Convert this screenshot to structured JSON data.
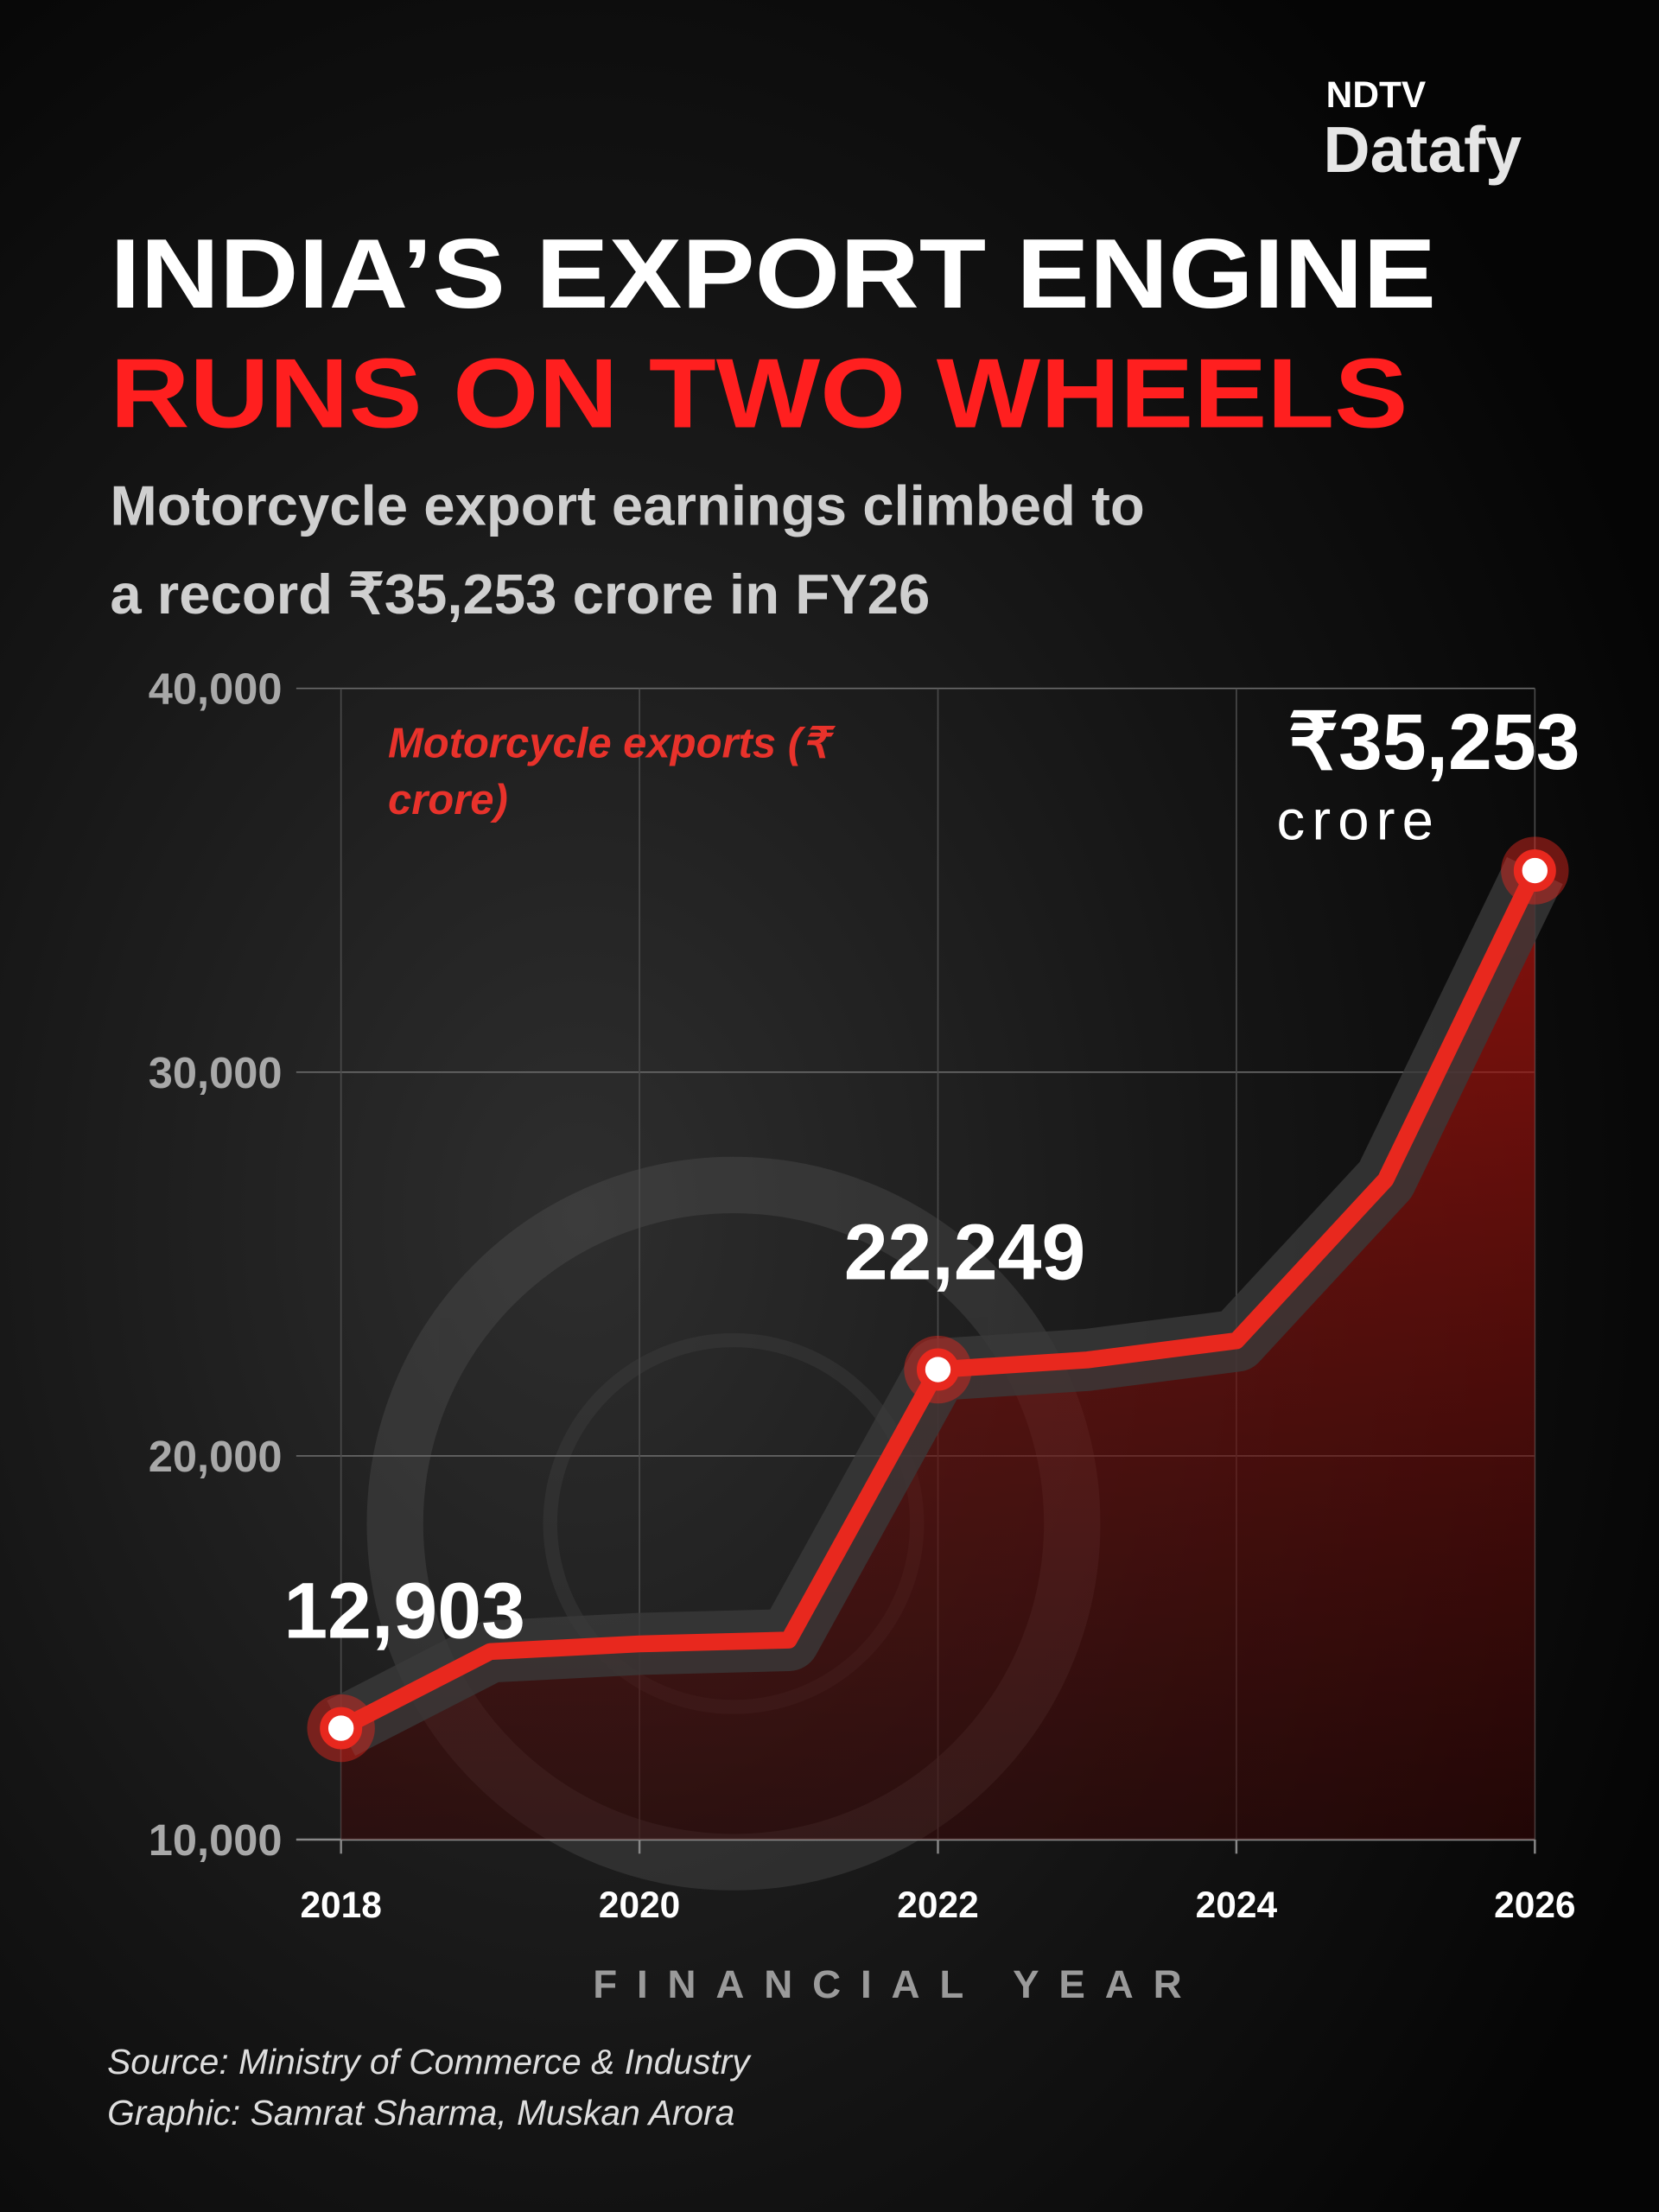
{
  "brand": {
    "top": "NDTV",
    "bottom": "Datafy"
  },
  "chart_data": {
    "type": "line",
    "title": [
      "INDIA’S EXPORT ENGINE",
      "RUNS ON TWO WHEELS"
    ],
    "subtitle": [
      "Motorcycle export earnings climbed to",
      "a record ₹35,253 crore in FY26"
    ],
    "x": [
      2018,
      2019,
      2020,
      2021,
      2022,
      2023,
      2024,
      2025,
      2026
    ],
    "series": [
      {
        "name": "Motorcycle exports (₹ crore)",
        "color": "#e8281e",
        "values": [
          12903,
          14900,
          15100,
          15200,
          22249,
          22500,
          23000,
          27200,
          35253
        ],
        "value_labels": [
          "12,903",
          null,
          null,
          null,
          "22,249",
          null,
          null,
          null,
          "₹35,253"
        ]
      }
    ],
    "last_value_unit": "crore",
    "xlim": [
      2017.7,
      2026
    ],
    "xticks": [
      2018,
      2020,
      2022,
      2024,
      2026
    ],
    "ylim": [
      10000,
      40000
    ],
    "yticks": [
      {
        "value": 10000,
        "label": "10,000"
      },
      {
        "value": 20000,
        "label": "20,000"
      },
      {
        "value": 30000,
        "label": "30,000"
      },
      {
        "value": 40000,
        "label": "40,000"
      }
    ],
    "xlabel": "FINANCIAL YEAR",
    "grid": true
  },
  "footer": {
    "source": "Source: Ministry of Commerce & Industry",
    "credit": "Graphic: Samrat Sharma, Muskan Arora"
  }
}
